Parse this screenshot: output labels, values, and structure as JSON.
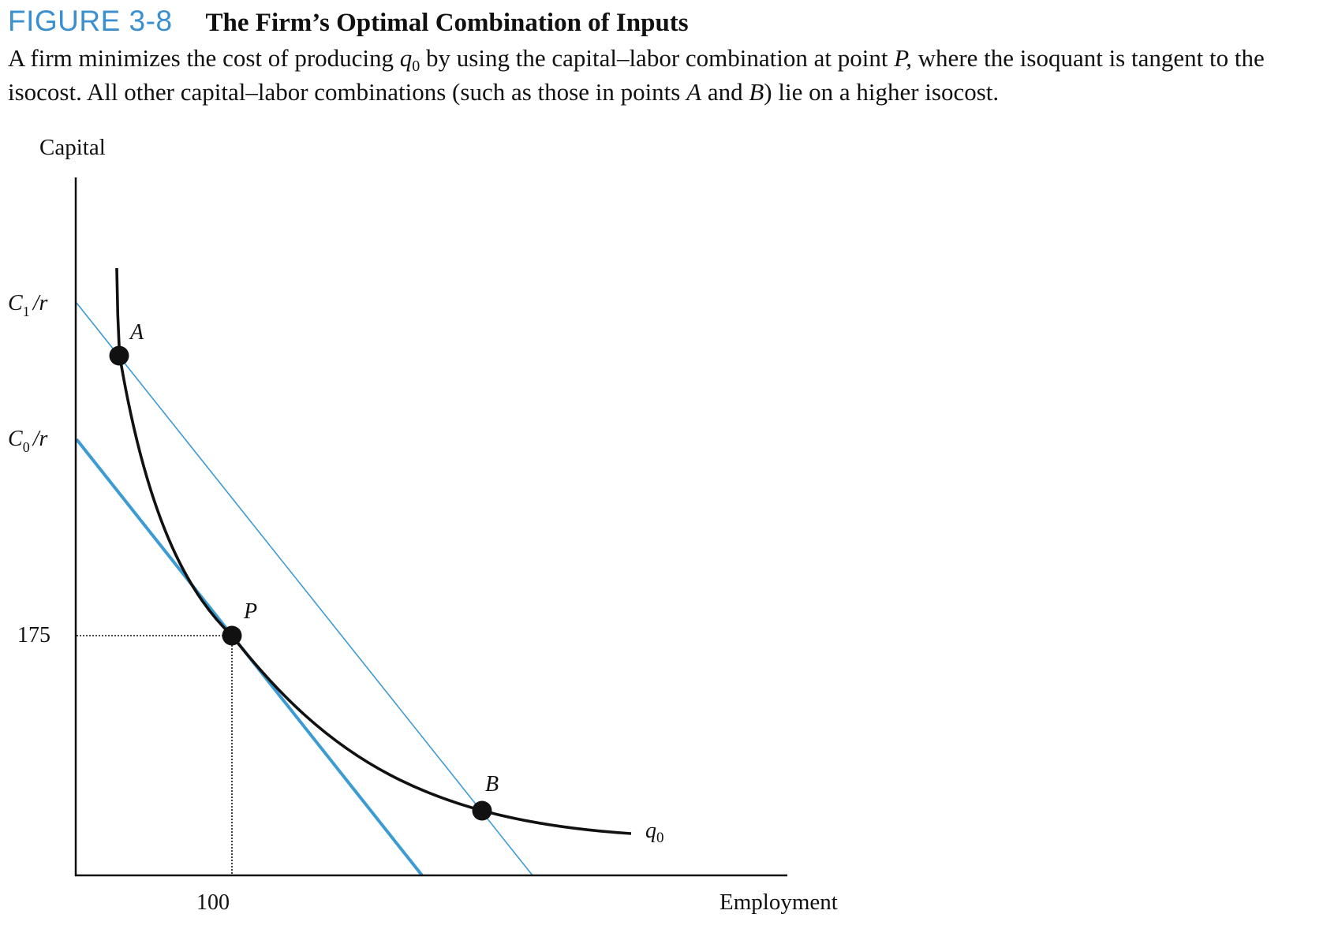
{
  "figure": {
    "number": "FIGURE 3-8",
    "title": "The Firm’s Optimal Combination of Inputs",
    "caption": {
      "part1": "A firm minimizes the cost of producing ",
      "q_symbol": "q",
      "q_subscript": "0",
      "part2": " by using the capital–labor combination at point ",
      "point_p": "P,",
      "part3": " where the isoquant is tangent to the isocost. All other capital–labor combinations (such as those in points ",
      "point_a": "A",
      "part4": " and ",
      "point_b": "B",
      "part5": ") lie on a higher isocost."
    },
    "accent_color": "#3a8fd0"
  },
  "chart_data": {
    "type": "diagram",
    "ylabel": "Capital",
    "xlabel": "Employment",
    "y_ticks": [
      {
        "text": "C",
        "sub": "1",
        "suffix": "/r"
      },
      {
        "text": "C",
        "sub": "0",
        "suffix": "/r"
      },
      {
        "text": "175"
      }
    ],
    "x_ticks": [
      "100"
    ],
    "tangency": {
      "label": "P",
      "employment": 100,
      "capital": 175
    },
    "points": [
      "A",
      "P",
      "B"
    ],
    "isoquant_label": {
      "text": "q",
      "sub": "0"
    },
    "colors": {
      "isocost": "#3d9bd3",
      "isoquant": "#111111",
      "axis": "#111111"
    }
  }
}
